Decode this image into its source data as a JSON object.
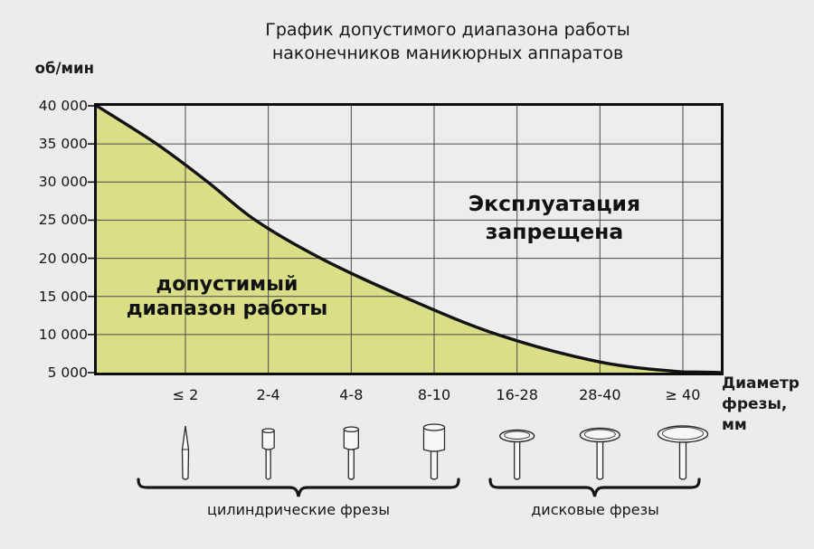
{
  "page": {
    "background": "#ebeceb"
  },
  "title": {
    "line1": "График допустимого диапазона работы",
    "line2": "наконечников маникюрных аппаратов"
  },
  "y_axis": {
    "label": "об/мин",
    "ticks": [
      "40 000",
      "35 000",
      "30 000",
      "25 000",
      "20 000",
      "15 000",
      "10 000",
      "5 000"
    ]
  },
  "x_axis": {
    "label_line1": "Диаметр",
    "label_line2": "фрезы, мм",
    "categories": [
      "≤ 2",
      "2-4",
      "4-8",
      "8-10",
      "16-28",
      "28-40",
      "≥ 40"
    ]
  },
  "regions": {
    "allowed": {
      "line1": "допустимый",
      "line2": "диапазон работы"
    },
    "forbidden": {
      "line1": "Эксплуатация",
      "line2": "запрещена"
    }
  },
  "groups": [
    {
      "label": "цилиндрические фрезы",
      "categories": [
        "≤ 2",
        "2-4",
        "4-8",
        "8-10"
      ]
    },
    {
      "label": "дисковые фрезы",
      "categories": [
        "16-28",
        "28-40",
        "≥ 40"
      ]
    }
  ],
  "bits": [
    {
      "name": "needle-bit-icon",
      "type": "needle",
      "size": "small",
      "category": "≤ 2"
    },
    {
      "name": "cylinder-bit-small-icon",
      "type": "cylinder",
      "size": "small",
      "category": "2-4"
    },
    {
      "name": "cylinder-bit-medium-icon",
      "type": "cylinder",
      "size": "medium",
      "category": "4-8"
    },
    {
      "name": "cylinder-bit-large-icon",
      "type": "cylinder",
      "size": "large",
      "category": "8-10"
    },
    {
      "name": "disc-bit-small-icon",
      "type": "disc",
      "size": "small",
      "category": "16-28"
    },
    {
      "name": "disc-bit-medium-icon",
      "type": "disc",
      "size": "medium",
      "category": "28-40"
    },
    {
      "name": "disc-bit-large-icon",
      "type": "disc",
      "size": "large",
      "category": "≥ 40"
    }
  ],
  "chart_data": {
    "type": "area",
    "title": "График допустимого диапазона работы наконечников маникюрных аппаратов",
    "xlabel": "Диаметр фрезы, мм",
    "ylabel": "об/мин",
    "ylim": [
      5000,
      40000
    ],
    "y_ticks": [
      40000,
      35000,
      30000,
      25000,
      20000,
      15000,
      10000,
      5000
    ],
    "grid": true,
    "categories": [
      "≤ 2",
      "2-4",
      "4-8",
      "8-10",
      "16-28",
      "28-40",
      "≥ 40"
    ],
    "max_rpm_by_category": [
      32000,
      24000,
      18000,
      12500,
      9000,
      6500,
      5000
    ],
    "curve_rpm_limit": [
      {
        "x_frac": 0.0,
        "rpm": 40000
      },
      {
        "x_frac": 0.096,
        "rpm": 35000
      },
      {
        "x_frac": 0.178,
        "rpm": 30000
      },
      {
        "x_frac": 0.254,
        "rpm": 25000
      },
      {
        "x_frac": 0.359,
        "rpm": 20000
      },
      {
        "x_frac": 0.49,
        "rpm": 15000
      },
      {
        "x_frac": 0.642,
        "rpm": 10000
      },
      {
        "x_frac": 0.806,
        "rpm": 6400
      },
      {
        "x_frac": 0.939,
        "rpm": 5100
      },
      {
        "x_frac": 1.0,
        "rpm": 5000
      }
    ],
    "allowed_region_label": "допустимый диапазон работы",
    "forbidden_region_label": "Эксплуатация запрещена",
    "colors": {
      "allowed_fill": "#d9de87",
      "plot_background": "#ecedec",
      "curve": "#121212",
      "grid": "#4a4a4a",
      "border": "#0d0d0d",
      "page_background": "#ebeceb",
      "icon_fill": "#f7f7f5",
      "icon_stroke": "#2a2a2a"
    }
  }
}
